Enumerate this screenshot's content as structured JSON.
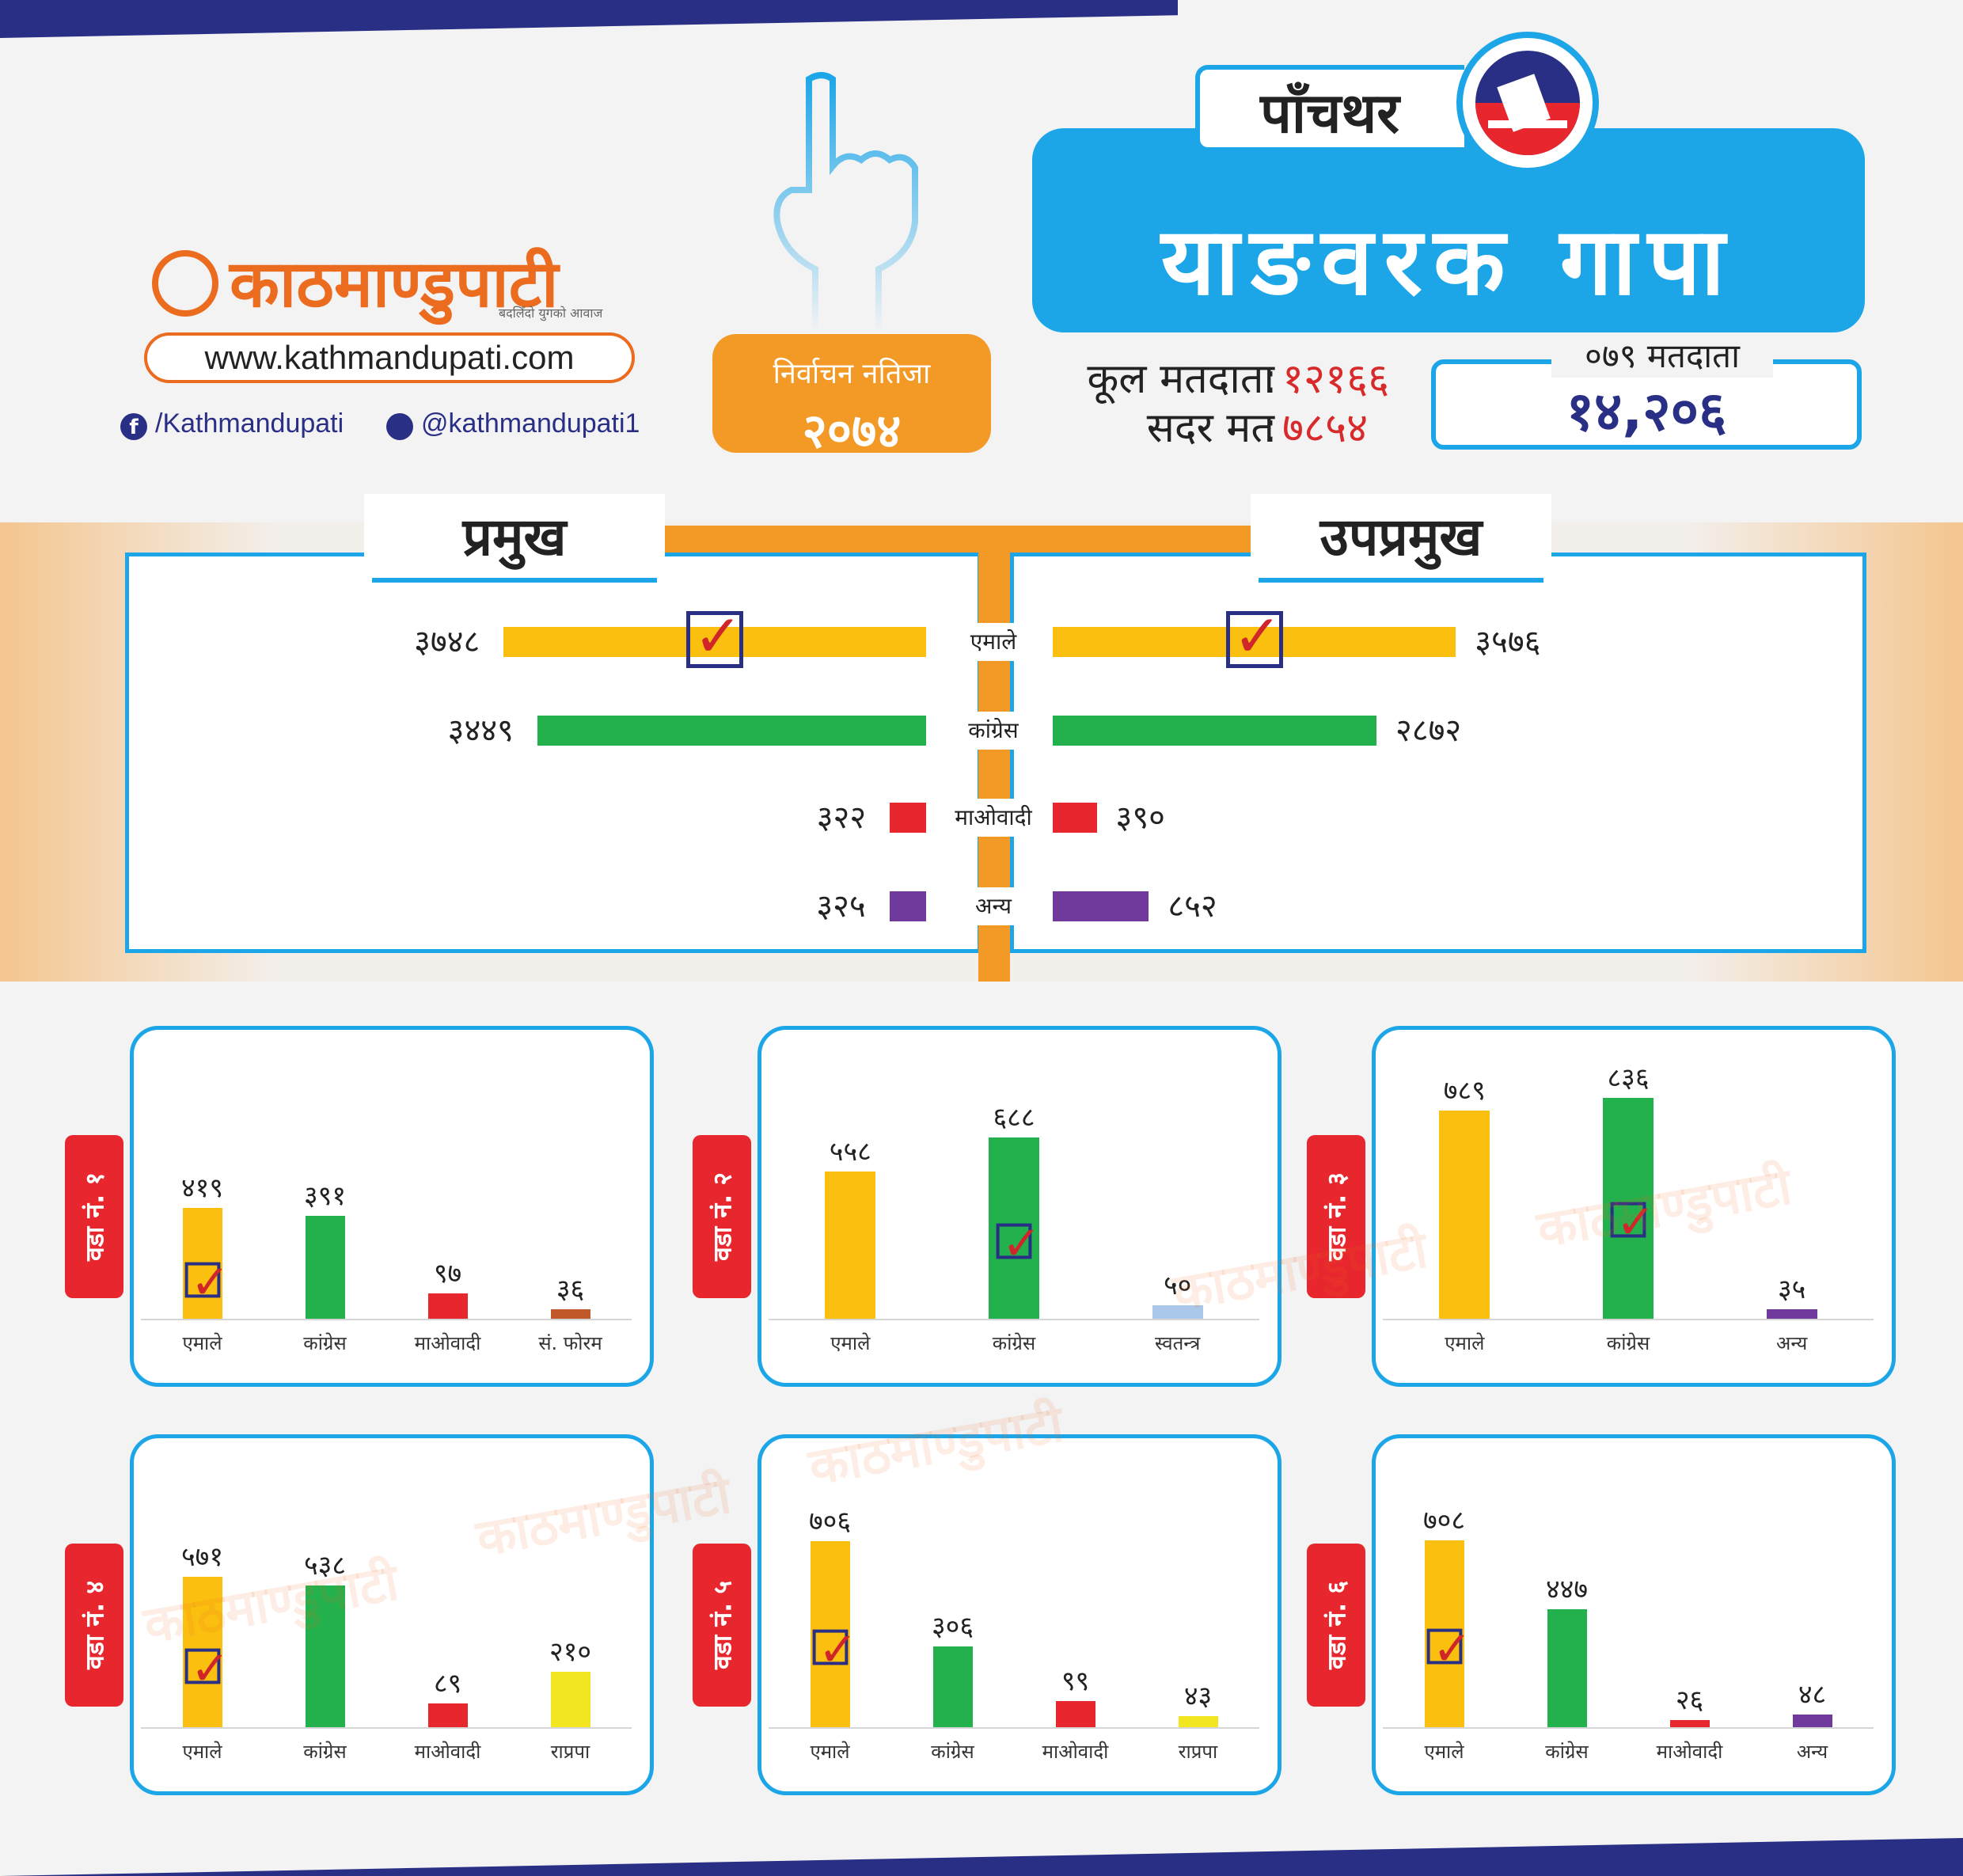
{
  "colors": {
    "uml": "#fbbf10",
    "congress": "#22b14c",
    "maoist": "#e8262d",
    "other": "#6f3a9c",
    "blue": "#1ca6e8",
    "orange": "#f39a26"
  },
  "brand": {
    "name": "काठमाण्डुपाटी",
    "tagline": "बदलिँदो युगको आवाज",
    "url": "www.kathmandupati.com",
    "facebook": "/Kathmandupati",
    "twitter": "@kathmandupati1"
  },
  "badge": {
    "line1": "निर्वाचन नतिजा",
    "line2": "२०७४"
  },
  "district": "पाँचथर",
  "municipality": "याङवरक गापा",
  "stats": {
    "total_label": "कूल मतदाता",
    "total_value": "१२१६६",
    "valid_label": "सदर मत",
    "valid_value": "७८५४",
    "sep": ":"
  },
  "voters079": {
    "label": "०७९ मतदाता",
    "value": "१४,२०६"
  },
  "summary": {
    "chief_label": "प्रमुख",
    "deputy_label": "उपप्रमुख",
    "rows": [
      {
        "party": "एमाले",
        "chief": 3748,
        "chief_text": "३७४८",
        "deputy": 3576,
        "deputy_text": "३५७६",
        "color": "#fbbf10",
        "chief_win": true,
        "deputy_win": true
      },
      {
        "party": "कांग्रेस",
        "chief": 3449,
        "chief_text": "३४४९",
        "deputy": 2872,
        "deputy_text": "२८७२",
        "color": "#22b14c",
        "chief_win": false,
        "deputy_win": false
      },
      {
        "party": "माओवादी",
        "chief": 322,
        "chief_text": "३२२",
        "deputy": 390,
        "deputy_text": "३९०",
        "color": "#e8262d",
        "chief_win": false,
        "deputy_win": false
      },
      {
        "party": "अन्य",
        "chief": 325,
        "chief_text": "३२५",
        "deputy": 852,
        "deputy_text": "८५२",
        "color": "#6f3a9c",
        "chief_win": false,
        "deputy_win": false
      }
    ]
  },
  "chart_data": [
    {
      "type": "bar",
      "title": "वडा नं. १",
      "categories": [
        "एमाले",
        "कांग्रेस",
        "माओवादी",
        "सं. फोरम"
      ],
      "values": [
        419,
        391,
        97,
        36
      ],
      "labels": [
        "४१९",
        "३९१",
        "९७",
        "३६"
      ],
      "colors": [
        "#fbbf10",
        "#22b14c",
        "#e8262d",
        "#c0582a"
      ],
      "winner": 0
    },
    {
      "type": "bar",
      "title": "वडा नं. २",
      "categories": [
        "एमाले",
        "कांग्रेस",
        "स्वतन्त्र"
      ],
      "values": [
        558,
        688,
        50
      ],
      "labels": [
        "५५८",
        "६८८",
        "५०"
      ],
      "colors": [
        "#fbbf10",
        "#22b14c",
        "#a9c8ea"
      ],
      "winner": 1
    },
    {
      "type": "bar",
      "title": "वडा नं. ३",
      "categories": [
        "एमाले",
        "कांग्रेस",
        "अन्य"
      ],
      "values": [
        789,
        836,
        35
      ],
      "labels": [
        "७८९",
        "८३६",
        "३५"
      ],
      "colors": [
        "#fbbf10",
        "#22b14c",
        "#6f3a9c"
      ],
      "winner": 1
    },
    {
      "type": "bar",
      "title": "वडा नं. ४",
      "categories": [
        "एमाले",
        "कांग्रेस",
        "माओवादी",
        "राप्रपा"
      ],
      "values": [
        571,
        538,
        89,
        210
      ],
      "labels": [
        "५७१",
        "५३८",
        "८९",
        "२१०"
      ],
      "colors": [
        "#fbbf10",
        "#22b14c",
        "#e8262d",
        "#f2e620"
      ],
      "winner": 0
    },
    {
      "type": "bar",
      "title": "वडा नं. ५",
      "categories": [
        "एमाले",
        "कांग्रेस",
        "माओवादी",
        "राप्रपा"
      ],
      "values": [
        706,
        306,
        99,
        43
      ],
      "labels": [
        "७०६",
        "३०६",
        "९९",
        "४३"
      ],
      "colors": [
        "#fbbf10",
        "#22b14c",
        "#e8262d",
        "#f2e620"
      ],
      "winner": 0
    },
    {
      "type": "bar",
      "title": "वडा नं. ६",
      "categories": [
        "एमाले",
        "कांग्रेस",
        "माओवादी",
        "अन्य"
      ],
      "values": [
        708,
        447,
        26,
        48
      ],
      "labels": [
        "७०८",
        "४४७",
        "२६",
        "४८"
      ],
      "colors": [
        "#fbbf10",
        "#22b14c",
        "#e8262d",
        "#6f3a9c"
      ],
      "winner": 0
    }
  ]
}
